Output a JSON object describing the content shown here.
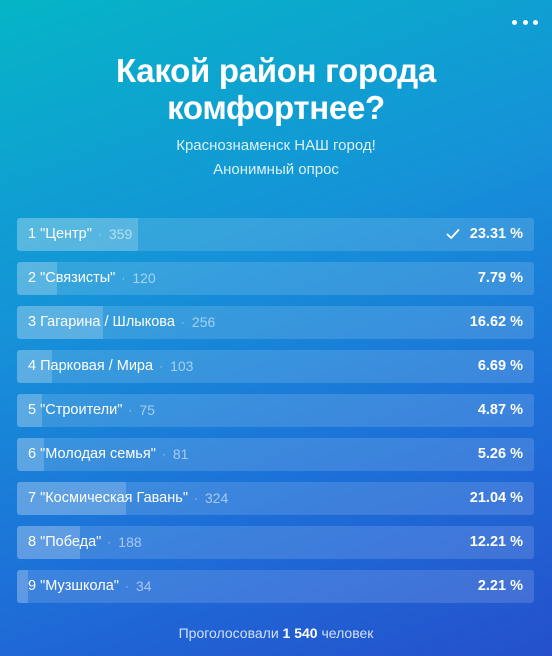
{
  "poll": {
    "title": "Какой район города комфортнее?",
    "subtitle": "Краснознаменск НАШ город!",
    "type": "Анонимный опрос",
    "footer_prefix": "Проголосовали",
    "footer_total": "1 540",
    "footer_suffix": "человек",
    "options": [
      {
        "label": "1 \"Центр\"",
        "count": "359",
        "percent": "23.31 %",
        "share": 23.31,
        "voted": true
      },
      {
        "label": "2 \"Связисты\"",
        "count": "120",
        "percent": "7.79 %",
        "share": 7.79,
        "voted": false
      },
      {
        "label": "3 Гагарина / Шлыкова",
        "count": "256",
        "percent": "16.62 %",
        "share": 16.62,
        "voted": false
      },
      {
        "label": "4 Парковая / Мира",
        "count": "103",
        "percent": "6.69 %",
        "share": 6.69,
        "voted": false
      },
      {
        "label": "5 \"Строители\"",
        "count": "75",
        "percent": "4.87 %",
        "share": 4.87,
        "voted": false
      },
      {
        "label": "6 \"Молодая семья\"",
        "count": "81",
        "percent": "5.26 %",
        "share": 5.26,
        "voted": false
      },
      {
        "label": "7 \"Космическая Гавань\"",
        "count": "324",
        "percent": "21.04 %",
        "share": 21.04,
        "voted": false
      },
      {
        "label": "8 \"Победа\"",
        "count": "188",
        "percent": "12.21 %",
        "share": 12.21,
        "voted": false
      },
      {
        "label": "9 \"Музшкола\"",
        "count": "34",
        "percent": "2.21 %",
        "share": 2.21,
        "voted": false
      }
    ]
  },
  "icons": {
    "menu": "more-horizontal-icon",
    "voted": "check-icon"
  }
}
